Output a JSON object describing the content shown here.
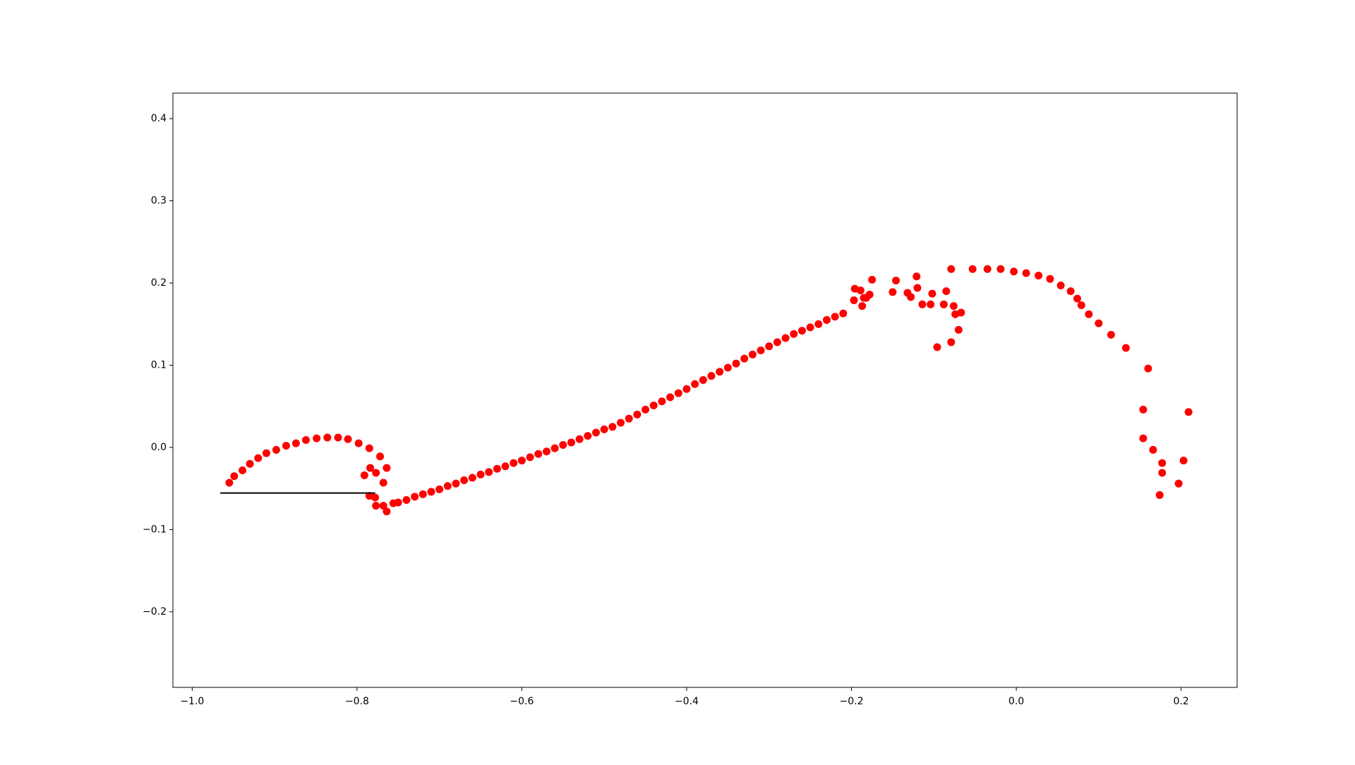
{
  "chart_data": {
    "type": "scatter",
    "xlim": [
      -1.0234,
      0.268
    ],
    "ylim": [
      -0.292,
      0.431
    ],
    "xticks": [
      {
        "value": -1.0,
        "label": "−1.0"
      },
      {
        "value": -0.8,
        "label": "−0.8"
      },
      {
        "value": -0.6,
        "label": "−0.6"
      },
      {
        "value": -0.4,
        "label": "−0.4"
      },
      {
        "value": -0.2,
        "label": "−0.2"
      },
      {
        "value": 0.0,
        "label": "0.0"
      },
      0.2
    ],
    "yticks": [
      {
        "value": -0.2,
        "label": "−0.2"
      },
      {
        "value": -0.1,
        "label": "−0.1"
      },
      {
        "value": 0.0,
        "label": "0.0"
      },
      0.1,
      0.2,
      0.3,
      0.4
    ],
    "series": [
      {
        "type": "scatter",
        "color": "#ff0000",
        "x": [
          -0.955,
          -0.949,
          -0.939,
          -0.93,
          -0.92,
          -0.91,
          -0.898,
          -0.886,
          -0.874,
          -0.862,
          -0.849,
          -0.836,
          -0.823,
          -0.811,
          -0.798,
          -0.785,
          -0.772,
          -0.764,
          -0.768,
          -0.777,
          -0.784,
          -0.791,
          -0.785,
          -0.778,
          -0.777,
          -0.768,
          -0.764,
          -0.756,
          -0.75,
          -0.74,
          -0.73,
          -0.72,
          -0.71,
          -0.7,
          -0.69,
          -0.68,
          -0.67,
          -0.66,
          -0.65,
          -0.64,
          -0.63,
          -0.62,
          -0.61,
          -0.6,
          -0.59,
          -0.58,
          -0.57,
          -0.56,
          -0.55,
          -0.54,
          -0.53,
          -0.52,
          -0.51,
          -0.5,
          -0.49,
          -0.48,
          -0.47,
          -0.46,
          -0.45,
          -0.44,
          -0.43,
          -0.42,
          -0.41,
          -0.4,
          -0.39,
          -0.38,
          -0.37,
          -0.36,
          -0.35,
          -0.34,
          -0.33,
          -0.32,
          -0.31,
          -0.3,
          -0.29,
          -0.28,
          -0.27,
          -0.26,
          -0.25,
          -0.24,
          -0.23,
          -0.22,
          -0.21,
          -0.196,
          -0.197,
          -0.189,
          -0.187,
          -0.185,
          -0.182,
          -0.178,
          -0.175,
          -0.15,
          -0.146,
          -0.132,
          -0.128,
          -0.121,
          -0.12,
          -0.114,
          -0.104,
          -0.102,
          -0.096,
          -0.088,
          -0.085,
          -0.079,
          -0.079,
          -0.076,
          -0.074,
          -0.07,
          -0.067,
          -0.053,
          -0.035,
          -0.019,
          -0.003,
          0.012,
          0.027,
          0.041,
          0.054,
          0.066,
          0.074,
          0.079,
          0.088,
          0.1,
          0.115,
          0.133,
          0.16,
          0.154,
          0.154,
          0.166,
          0.177,
          0.177,
          0.174,
          0.197,
          0.203,
          0.209
        ],
        "y": [
          -0.043,
          -0.035,
          -0.028,
          -0.02,
          -0.013,
          -0.007,
          -0.003,
          0.002,
          0.005,
          0.009,
          0.011,
          0.012,
          0.012,
          0.01,
          0.005,
          -0.001,
          -0.011,
          -0.025,
          -0.043,
          -0.031,
          -0.025,
          -0.034,
          -0.059,
          -0.061,
          -0.071,
          -0.071,
          -0.078,
          -0.068,
          -0.067,
          -0.064,
          -0.06,
          -0.057,
          -0.054,
          -0.051,
          -0.047,
          -0.044,
          -0.04,
          -0.037,
          -0.033,
          -0.03,
          -0.026,
          -0.023,
          -0.019,
          -0.016,
          -0.012,
          -0.008,
          -0.005,
          -0.001,
          0.003,
          0.006,
          0.01,
          0.014,
          0.018,
          0.022,
          0.025,
          0.03,
          0.035,
          0.04,
          0.046,
          0.051,
          0.056,
          0.061,
          0.066,
          0.071,
          0.077,
          0.082,
          0.087,
          0.092,
          0.097,
          0.102,
          0.108,
          0.113,
          0.118,
          0.123,
          0.128,
          0.133,
          0.138,
          0.142,
          0.146,
          0.15,
          0.155,
          0.159,
          0.163,
          0.193,
          0.179,
          0.191,
          0.172,
          0.182,
          0.182,
          0.186,
          0.204,
          0.189,
          0.203,
          0.188,
          0.183,
          0.208,
          0.194,
          0.174,
          0.174,
          0.187,
          0.122,
          0.174,
          0.19,
          0.217,
          0.128,
          0.172,
          0.162,
          0.143,
          0.164,
          0.217,
          0.217,
          0.217,
          0.214,
          0.212,
          0.209,
          0.205,
          0.197,
          0.19,
          0.181,
          0.173,
          0.162,
          0.151,
          0.137,
          0.121,
          0.096,
          0.046,
          0.011,
          -0.003,
          -0.019,
          -0.031,
          -0.058,
          -0.044,
          -0.016,
          0.043
        ]
      },
      {
        "type": "line",
        "color": "#000000",
        "x": [
          -0.966,
          -0.778
        ],
        "y": [
          -0.0555,
          -0.0555
        ]
      }
    ]
  }
}
